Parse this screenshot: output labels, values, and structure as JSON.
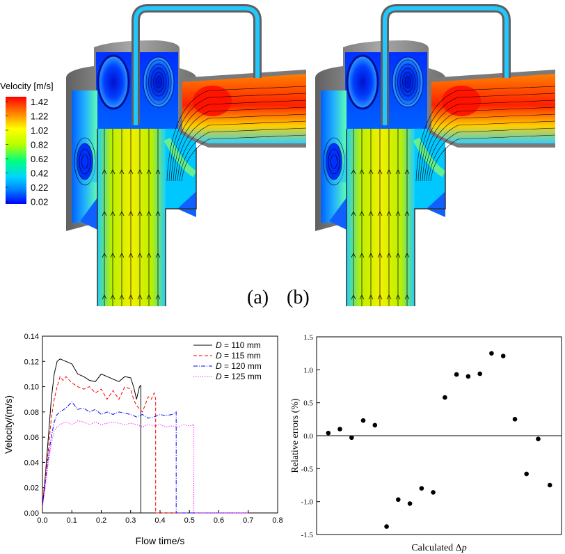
{
  "colorbar": {
    "title": "Velocity [m/s]",
    "ticks": [
      "1.42",
      "1.22",
      "1.02",
      "0.82",
      "0.62",
      "0.42",
      "0.22",
      "0.02"
    ]
  },
  "panels": [
    {
      "label": "(a)"
    },
    {
      "label": "(b)"
    }
  ],
  "colors": {
    "axis": "#000000",
    "series": [
      "#000000",
      "#ff0000",
      "#0000ff",
      "#ff00ff"
    ]
  },
  "chart_data": [
    {
      "type": "line",
      "xlabel": "Flow time/s",
      "ylabel": "Velocity/(m/s)",
      "xlim": [
        0.0,
        0.8
      ],
      "ylim": [
        0.0,
        0.14
      ],
      "xticks": [
        "0.0",
        "0.1",
        "0.2",
        "0.3",
        "0.4",
        "0.5",
        "0.6",
        "0.7",
        "0.8"
      ],
      "yticks": [
        "0.00",
        "0.02",
        "0.04",
        "0.06",
        "0.08",
        "0.10",
        "0.12",
        "0.14"
      ],
      "legend_position": "top-right",
      "grid": false,
      "series": [
        {
          "name": "D = 110 mm",
          "name_italic": "D",
          "name_rest": " = 110 mm",
          "style": "solid",
          "points": [
            [
              0.0,
              0.005
            ],
            [
              0.01,
              0.03
            ],
            [
              0.02,
              0.06
            ],
            [
              0.03,
              0.09
            ],
            [
              0.04,
              0.11
            ],
            [
              0.05,
              0.12
            ],
            [
              0.06,
              0.122
            ],
            [
              0.08,
              0.12
            ],
            [
              0.1,
              0.118
            ],
            [
              0.12,
              0.11
            ],
            [
              0.14,
              0.108
            ],
            [
              0.16,
              0.105
            ],
            [
              0.18,
              0.104
            ],
            [
              0.2,
              0.11
            ],
            [
              0.22,
              0.108
            ],
            [
              0.24,
              0.106
            ],
            [
              0.26,
              0.104
            ],
            [
              0.28,
              0.108
            ],
            [
              0.3,
              0.107
            ],
            [
              0.31,
              0.1
            ],
            [
              0.32,
              0.09
            ],
            [
              0.33,
              0.1
            ],
            [
              0.335,
              0.101
            ],
            [
              0.335,
              0.0
            ],
            [
              0.7,
              0.0
            ]
          ]
        },
        {
          "name": "D = 115 mm",
          "name_italic": "D",
          "name_rest": " = 115 mm",
          "style": "dashed",
          "points": [
            [
              0.0,
              0.005
            ],
            [
              0.01,
              0.03
            ],
            [
              0.02,
              0.05
            ],
            [
              0.03,
              0.075
            ],
            [
              0.04,
              0.09
            ],
            [
              0.05,
              0.1
            ],
            [
              0.06,
              0.108
            ],
            [
              0.07,
              0.105
            ],
            [
              0.08,
              0.108
            ],
            [
              0.1,
              0.103
            ],
            [
              0.12,
              0.1
            ],
            [
              0.14,
              0.098
            ],
            [
              0.16,
              0.1
            ],
            [
              0.18,
              0.095
            ],
            [
              0.2,
              0.098
            ],
            [
              0.22,
              0.09
            ],
            [
              0.24,
              0.097
            ],
            [
              0.26,
              0.09
            ],
            [
              0.28,
              0.1
            ],
            [
              0.3,
              0.098
            ],
            [
              0.31,
              0.09
            ],
            [
              0.32,
              0.085
            ],
            [
              0.34,
              0.08
            ],
            [
              0.36,
              0.092
            ],
            [
              0.37,
              0.09
            ],
            [
              0.38,
              0.095
            ],
            [
              0.385,
              0.09
            ],
            [
              0.385,
              0.0
            ],
            [
              0.7,
              0.0
            ]
          ]
        },
        {
          "name": "D = 120 mm",
          "name_italic": "D",
          "name_rest": " = 120 mm",
          "style": "dashdot",
          "points": [
            [
              0.0,
              0.005
            ],
            [
              0.01,
              0.025
            ],
            [
              0.02,
              0.045
            ],
            [
              0.03,
              0.06
            ],
            [
              0.04,
              0.072
            ],
            [
              0.05,
              0.078
            ],
            [
              0.06,
              0.08
            ],
            [
              0.08,
              0.083
            ],
            [
              0.1,
              0.088
            ],
            [
              0.12,
              0.082
            ],
            [
              0.14,
              0.083
            ],
            [
              0.16,
              0.08
            ],
            [
              0.18,
              0.082
            ],
            [
              0.2,
              0.078
            ],
            [
              0.22,
              0.08
            ],
            [
              0.24,
              0.078
            ],
            [
              0.26,
              0.08
            ],
            [
              0.28,
              0.079
            ],
            [
              0.3,
              0.078
            ],
            [
              0.32,
              0.076
            ],
            [
              0.34,
              0.078
            ],
            [
              0.36,
              0.075
            ],
            [
              0.38,
              0.076
            ],
            [
              0.4,
              0.078
            ],
            [
              0.42,
              0.077
            ],
            [
              0.44,
              0.078
            ],
            [
              0.455,
              0.08
            ],
            [
              0.455,
              0.0
            ],
            [
              0.7,
              0.0
            ]
          ]
        },
        {
          "name": "D = 125 mm",
          "name_italic": "D",
          "name_rest": " = 125 mm",
          "style": "dotted",
          "points": [
            [
              0.0,
              0.005
            ],
            [
              0.01,
              0.02
            ],
            [
              0.02,
              0.04
            ],
            [
              0.03,
              0.055
            ],
            [
              0.04,
              0.065
            ],
            [
              0.05,
              0.068
            ],
            [
              0.06,
              0.07
            ],
            [
              0.08,
              0.072
            ],
            [
              0.1,
              0.07
            ],
            [
              0.12,
              0.073
            ],
            [
              0.14,
              0.072
            ],
            [
              0.16,
              0.07
            ],
            [
              0.18,
              0.072
            ],
            [
              0.2,
              0.07
            ],
            [
              0.22,
              0.071
            ],
            [
              0.24,
              0.072
            ],
            [
              0.26,
              0.071
            ],
            [
              0.28,
              0.07
            ],
            [
              0.3,
              0.071
            ],
            [
              0.32,
              0.07
            ],
            [
              0.34,
              0.068
            ],
            [
              0.36,
              0.07
            ],
            [
              0.38,
              0.069
            ],
            [
              0.4,
              0.07
            ],
            [
              0.42,
              0.068
            ],
            [
              0.44,
              0.069
            ],
            [
              0.46,
              0.068
            ],
            [
              0.48,
              0.07
            ],
            [
              0.5,
              0.069
            ],
            [
              0.515,
              0.07
            ],
            [
              0.515,
              0.0
            ],
            [
              0.7,
              0.0
            ]
          ]
        }
      ]
    },
    {
      "type": "scatter",
      "xlabel": "Calculated Δp",
      "xlabel_text": "Calculated Δ",
      "xlabel_italic": "p",
      "ylabel": "Relative errors (%)",
      "ylim": [
        -1.5,
        1.5
      ],
      "xlim": [
        0,
        21
      ],
      "yticks": [
        "-1.5",
        "-1.0",
        "-0.5",
        "0.0",
        "0.5",
        "1.0",
        "1.5"
      ],
      "zero_line": true,
      "grid": false,
      "series": [
        {
          "values": [
            [
              1,
              0.04
            ],
            [
              2,
              0.1
            ],
            [
              3,
              -0.03
            ],
            [
              4,
              0.23
            ],
            [
              5,
              0.16
            ],
            [
              6,
              -1.38
            ],
            [
              7,
              -0.97
            ],
            [
              8,
              -1.03
            ],
            [
              9,
              -0.8
            ],
            [
              10,
              -0.86
            ],
            [
              11,
              0.58
            ],
            [
              12,
              0.93
            ],
            [
              13,
              0.9
            ],
            [
              14,
              0.94
            ],
            [
              15,
              1.25
            ],
            [
              16,
              1.21
            ],
            [
              17,
              0.25
            ],
            [
              18,
              -0.58
            ],
            [
              19,
              -0.05
            ],
            [
              20,
              -0.75
            ]
          ]
        }
      ]
    }
  ]
}
